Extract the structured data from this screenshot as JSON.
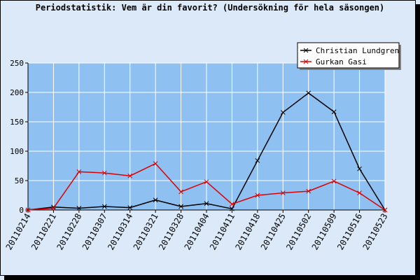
{
  "chart_data": {
    "type": "line",
    "title": "Periodstatistik: Vem är din favorit? (Undersökning för hela säsongen)",
    "xlabel": "",
    "ylabel": "",
    "categories": [
      "20110214",
      "20110221",
      "20110228",
      "20110307",
      "20110314",
      "20110321",
      "20110328",
      "20110404",
      "20110411",
      "20110418",
      "20110425",
      "20110502",
      "20110509",
      "20110516",
      "20110523"
    ],
    "ylim": [
      0,
      250
    ],
    "yticks": [
      0,
      50,
      100,
      150,
      200,
      250
    ],
    "grid": true,
    "legend_position": "top-right",
    "series": [
      {
        "name": "Christian Lundgren",
        "color": "#000000",
        "marker": "x",
        "values": [
          0,
          5,
          3,
          6,
          4,
          17,
          6,
          11,
          2,
          84,
          166,
          199,
          167,
          70,
          0
        ]
      },
      {
        "name": "Gurkan Gasi",
        "color": "#dd0000",
        "marker": "x",
        "values": [
          0,
          3,
          65,
          63,
          58,
          79,
          31,
          48,
          10,
          25,
          29,
          32,
          49,
          29,
          0
        ]
      }
    ]
  },
  "colors": {
    "background": "#dbe9f9",
    "plot_area": "#8fc0f2",
    "grid": "#ffffff",
    "frame": "#000000"
  }
}
